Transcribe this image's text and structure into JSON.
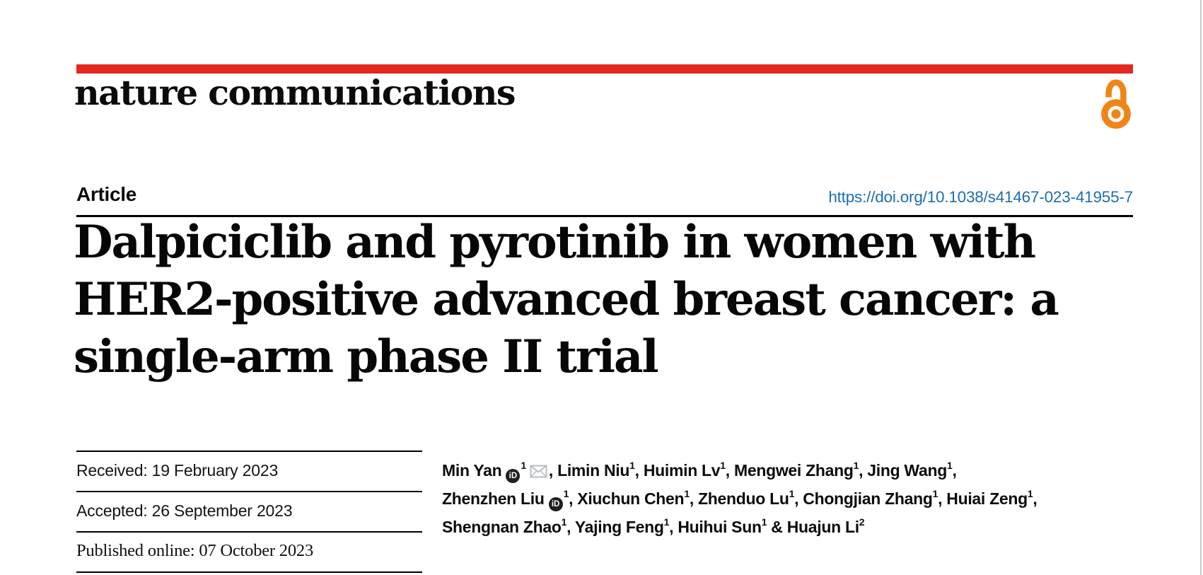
{
  "journal": {
    "name": "nature communications",
    "open_access_icon": "open-access-padlock-icon"
  },
  "brand_colors": {
    "nature_red": "#e2291f",
    "open_access_orange": "#ef8518",
    "doi_blue": "#1c6eb0",
    "envelope_gray": "#b9bdc1"
  },
  "article": {
    "kind_label": "Article",
    "doi_url": "https://doi.org/10.1038/s41467-023-41955-7",
    "title_lines": [
      "Dalpiciclib and pyrotinib in women with",
      "HER2-positive advanced breast cancer: a",
      "single-arm phase II trial"
    ]
  },
  "dates": {
    "received": "Received: 19 February 2023",
    "accepted": "Accepted: 26 September 2023",
    "published": "Published online: 07 October 2023"
  },
  "icons": {
    "orcid_glyph": "iD",
    "email_name": "email-envelope-icon"
  },
  "authors": {
    "lines": [
      [
        {
          "text": "Min Yan"
        },
        {
          "icon": "orcid"
        },
        {
          "sup": "1"
        },
        {
          "icon": "email"
        },
        {
          "text": ", Limin Niu"
        },
        {
          "sup": "1"
        },
        {
          "text": ", Huimin Lv"
        },
        {
          "sup": "1"
        },
        {
          "text": ", Mengwei Zhang"
        },
        {
          "sup": "1"
        },
        {
          "text": ", Jing Wang"
        },
        {
          "sup": "1"
        },
        {
          "text": ","
        }
      ],
      [
        {
          "text": "Zhenzhen Liu"
        },
        {
          "icon": "orcid"
        },
        {
          "sup": "1"
        },
        {
          "text": ", Xiuchun Chen"
        },
        {
          "sup": "1"
        },
        {
          "text": ", Zhenduo Lu"
        },
        {
          "sup": "1"
        },
        {
          "text": ", Chongjian Zhang"
        },
        {
          "sup": "1"
        },
        {
          "text": ", Huiai Zeng"
        },
        {
          "sup": "1"
        },
        {
          "text": ","
        }
      ],
      [
        {
          "text": "Shengnan Zhao"
        },
        {
          "sup": "1"
        },
        {
          "text": ", Yajing Feng"
        },
        {
          "sup": "1"
        },
        {
          "text": ", Huihui Sun"
        },
        {
          "sup": "1"
        },
        {
          "text": " & Huajun Li"
        },
        {
          "sup": "2"
        }
      ]
    ]
  }
}
